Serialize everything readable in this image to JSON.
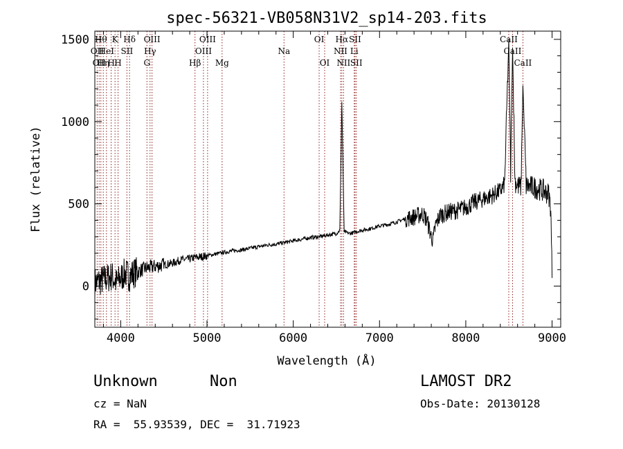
{
  "chart_data": {
    "type": "line",
    "title": "spec-56321-VB058N31V2_sp14-203.fits",
    "xlabel": "Wavelength (Å)",
    "ylabel": "Flux (relative)",
    "xlim": [
      3700,
      9100
    ],
    "ylim": [
      -250,
      1550
    ],
    "xticks": [
      4000,
      5000,
      6000,
      7000,
      8000,
      9000
    ],
    "yticks": [
      0,
      500,
      1000,
      1500
    ],
    "grid": false,
    "line_color": "#000000",
    "marker_color": "#8b1a1a",
    "series": [
      {
        "x": [
          3700,
          3750,
          3800,
          3850,
          3900,
          3950,
          4000,
          4050,
          4100,
          4150,
          4200,
          4300,
          4400,
          4500,
          4600,
          4700,
          4800,
          4861,
          4900,
          5000,
          5100,
          5200,
          5300,
          5400,
          5500,
          5600,
          5700,
          5800,
          5900,
          6000,
          6100,
          6200,
          6300,
          6400,
          6500,
          6540,
          6563,
          6590,
          6650,
          6700,
          6720,
          6800,
          6900,
          7000,
          7100,
          7200,
          7300,
          7400,
          7500,
          7550,
          7600,
          7620,
          7650,
          7700,
          7800,
          7900,
          8000,
          8100,
          8200,
          8300,
          8400,
          8450,
          8498,
          8520,
          8542,
          8570,
          8600,
          8640,
          8662,
          8700,
          8800,
          8900,
          8960,
          8985,
          9000
        ],
        "y": [
          20,
          30,
          40,
          50,
          60,
          20,
          50,
          80,
          60,
          80,
          90,
          110,
          120,
          130,
          140,
          160,
          165,
          175,
          175,
          185,
          195,
          205,
          215,
          220,
          230,
          240,
          250,
          255,
          265,
          275,
          285,
          295,
          300,
          310,
          320,
          340,
          1120,
          330,
          320,
          325,
          330,
          340,
          350,
          365,
          375,
          390,
          410,
          420,
          440,
          400,
          300,
          280,
          370,
          430,
          450,
          460,
          480,
          510,
          530,
          550,
          580,
          620,
          1500,
          690,
          1450,
          640,
          610,
          600,
          1220,
          610,
          600,
          580,
          560,
          480,
          50
        ]
      }
    ],
    "lines": [
      {
        "wave": 3727,
        "label": "OII",
        "row": 1
      },
      {
        "wave": 3750,
        "label": "OII",
        "row": 2
      },
      {
        "wave": 3770,
        "label": "Hθ",
        "row": 0
      },
      {
        "wave": 3798,
        "label": "Hη",
        "row": 2
      },
      {
        "wave": 3835,
        "label": "HeI",
        "row": 1
      },
      {
        "wave": 3889,
        "label": "H",
        "row": 2
      },
      {
        "wave": 3934,
        "label": "K",
        "row": 0
      },
      {
        "wave": 3969,
        "label": "H",
        "row": 2
      },
      {
        "wave": 4072,
        "label": "SII",
        "row": 1
      },
      {
        "wave": 4102,
        "label": "Hδ",
        "row": 0
      },
      {
        "wave": 4304,
        "label": "G",
        "row": 2
      },
      {
        "wave": 4340,
        "label": "Hγ",
        "row": 1
      },
      {
        "wave": 4363,
        "label": "OIII",
        "row": 0
      },
      {
        "wave": 4861,
        "label": "Hβ",
        "row": 2
      },
      {
        "wave": 4959,
        "label": "OIII",
        "row": 1
      },
      {
        "wave": 5007,
        "label": "OIII",
        "row": 0
      },
      {
        "wave": 5175,
        "label": "Mg",
        "row": 2
      },
      {
        "wave": 5893,
        "label": "Na",
        "row": 1
      },
      {
        "wave": 6300,
        "label": "OI",
        "row": 0
      },
      {
        "wave": 6364,
        "label": "OI",
        "row": 2
      },
      {
        "wave": 6548,
        "label": "NII",
        "row": 1
      },
      {
        "wave": 6563,
        "label": "Hα",
        "row": 0
      },
      {
        "wave": 6583,
        "label": "NII",
        "row": 2
      },
      {
        "wave": 6707,
        "label": "Li",
        "row": 1
      },
      {
        "wave": 6716,
        "label": "SII",
        "row": 0
      },
      {
        "wave": 6731,
        "label": "SII",
        "row": 2
      },
      {
        "wave": 8498,
        "label": "CaII",
        "row": 0
      },
      {
        "wave": 8542,
        "label": "CaII",
        "row": 1
      },
      {
        "wave": 8662,
        "label": "CaII",
        "row": 2
      }
    ]
  },
  "info": {
    "classification": "Unknown",
    "subclass": "Non",
    "survey": "LAMOST DR2",
    "cz": "cz = NaN",
    "obs_date": "Obs-Date: 20130128",
    "coords": "RA =  55.93539, DEC =  31.71923"
  }
}
